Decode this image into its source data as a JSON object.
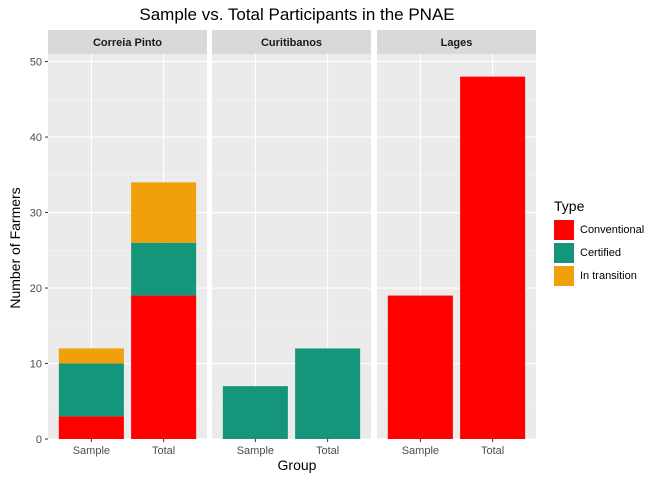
{
  "chart_data": {
    "type": "bar",
    "stacked": true,
    "title": "Sample vs. Total Participants in the PNAE",
    "xlabel": "Group",
    "ylabel": "Number of Farmers",
    "ylim": [
      0,
      51
    ],
    "yticks": [
      0,
      10,
      20,
      30,
      40,
      50
    ],
    "categories": [
      "Sample",
      "Total"
    ],
    "legend": {
      "title": "Type",
      "position": "right",
      "entries": [
        "Conventional",
        "Certified",
        "In transition"
      ]
    },
    "colors": {
      "Conventional": "#fe0000",
      "Certified": "#15967b",
      "In transition": "#f0a00b"
    },
    "facets": [
      {
        "name": "Correia Pinto",
        "series": [
          {
            "name": "Conventional",
            "values": [
              3,
              19
            ]
          },
          {
            "name": "Certified",
            "values": [
              7,
              7
            ]
          },
          {
            "name": "In transition",
            "values": [
              2,
              8
            ]
          }
        ]
      },
      {
        "name": "Curitibanos",
        "series": [
          {
            "name": "Conventional",
            "values": [
              0,
              0
            ]
          },
          {
            "name": "Certified",
            "values": [
              7,
              12
            ]
          },
          {
            "name": "In transition",
            "values": [
              0,
              0
            ]
          }
        ]
      },
      {
        "name": "Lages",
        "series": [
          {
            "name": "Conventional",
            "values": [
              19,
              48
            ]
          },
          {
            "name": "Certified",
            "values": [
              0,
              0
            ]
          },
          {
            "name": "In transition",
            "values": [
              0,
              0
            ]
          }
        ]
      }
    ]
  }
}
